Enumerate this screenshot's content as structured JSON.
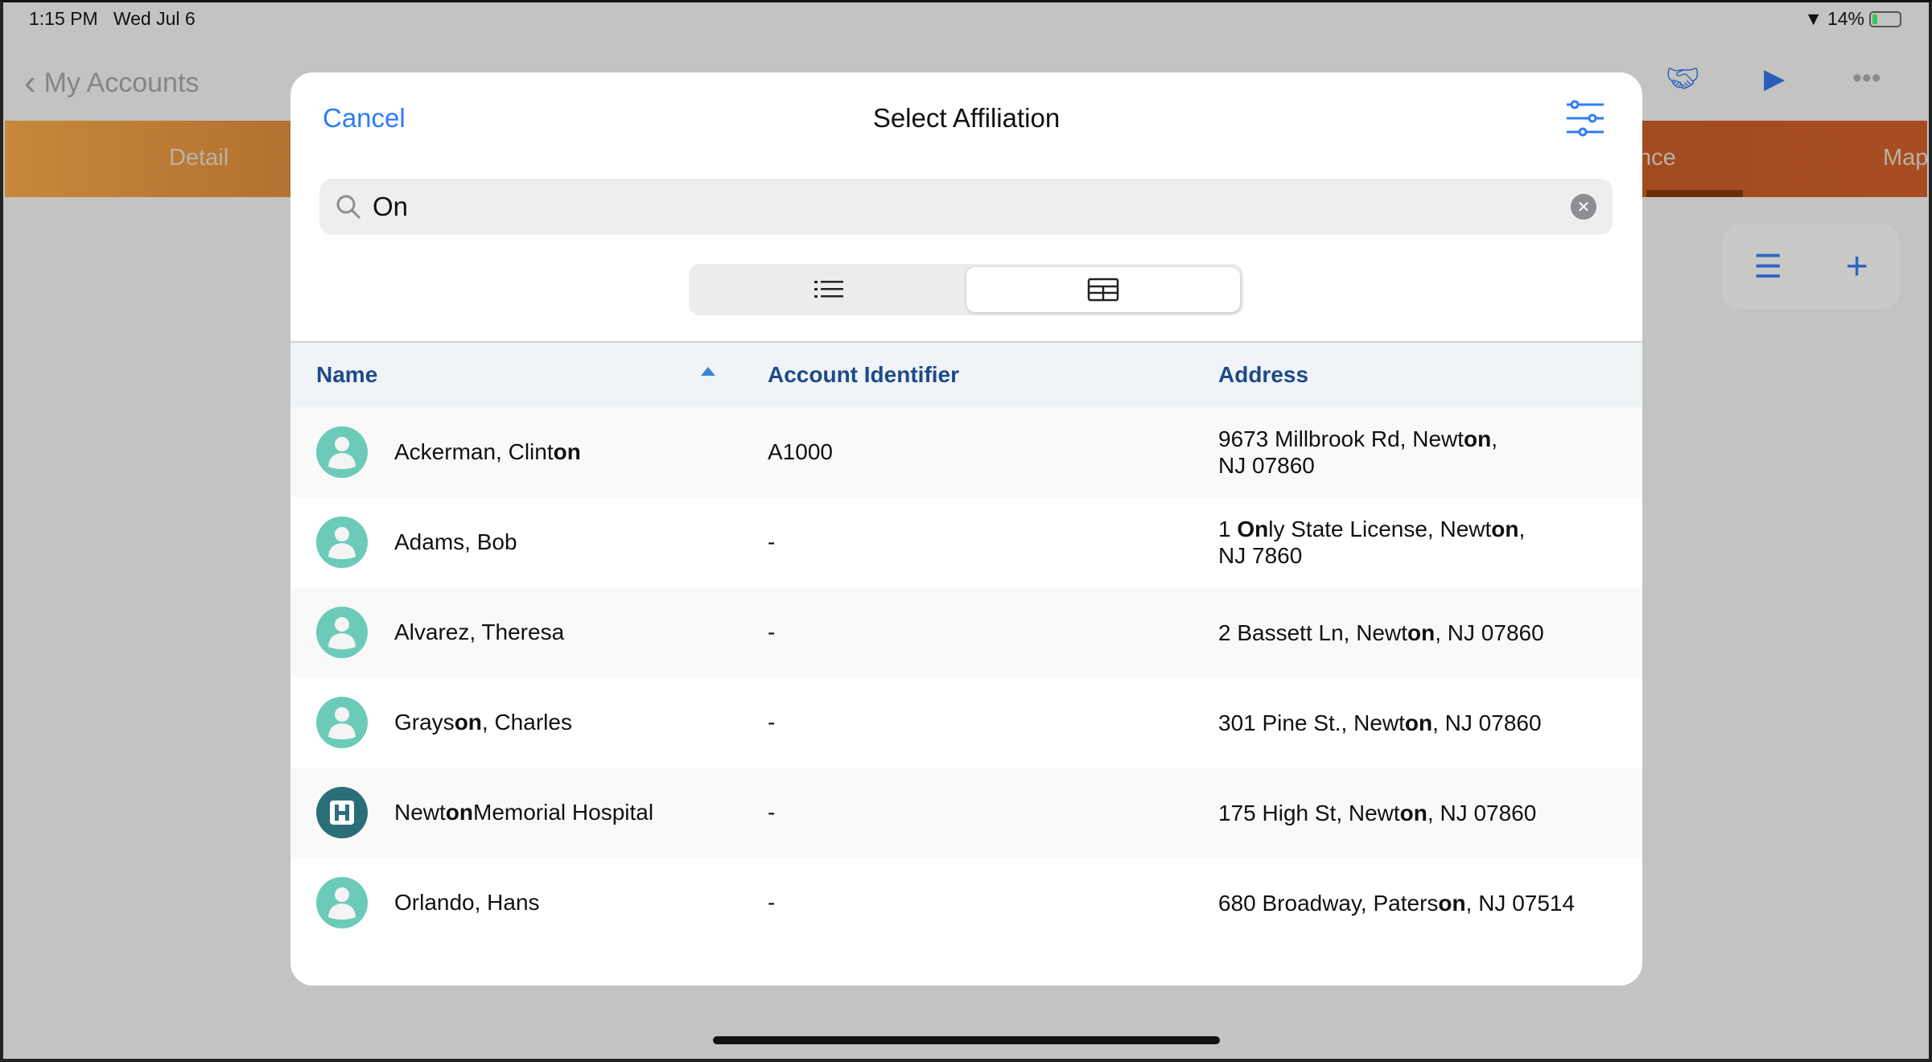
{
  "status": {
    "time": "1:15 PM",
    "date": "Wed Jul 6",
    "battery": "14%",
    "battery_level": 14
  },
  "nav": {
    "back_label": "My Accounts",
    "icons": [
      "handshake-icon",
      "video-icon",
      "ellipsis-icon"
    ]
  },
  "tabs": [
    {
      "label": "Detail"
    },
    {
      "label": "nce"
    },
    {
      "label": "Map"
    }
  ],
  "modal": {
    "cancel": "Cancel",
    "title": "Select Affiliation",
    "filter_icon": "sliders-icon",
    "search": {
      "value": "On",
      "placeholder": ""
    },
    "view_toggle": {
      "options": [
        "list",
        "table"
      ],
      "selected": "table"
    },
    "columns": [
      "Name",
      "Account Identifier",
      "Address"
    ],
    "sort": {
      "column": "Name",
      "direction": "ascending"
    },
    "rows": [
      {
        "type": "person",
        "name": [
          "Ackerman, Clint",
          "on",
          ""
        ],
        "account": "A1000",
        "address": [
          [
            "9673 Millbrook Rd, Newt",
            "on",
            ","
          ],
          [
            "NJ 07860"
          ]
        ]
      },
      {
        "type": "person",
        "name": [
          "Adams, Bob"
        ],
        "account": "-",
        "address": [
          [
            "1 ",
            "On",
            "ly State License, Newt",
            "on",
            ","
          ],
          [
            "NJ 7860"
          ]
        ]
      },
      {
        "type": "person",
        "name": [
          "Alvarez, Theresa"
        ],
        "account": "-",
        "address": [
          [
            "2 Bassett Ln, Newt",
            "on",
            ", NJ 07860"
          ]
        ]
      },
      {
        "type": "person",
        "name": [
          "Grays",
          "on",
          ", Charles"
        ],
        "account": "-",
        "address": [
          [
            "301 Pine St., Newt",
            "on",
            ", NJ 07860"
          ]
        ]
      },
      {
        "type": "hospital",
        "name": [
          "Newt",
          "on",
          " Memorial Hospital"
        ],
        "account": "-",
        "address": [
          [
            "175 High St, Newt",
            "on",
            ", NJ 07860"
          ]
        ]
      },
      {
        "type": "person",
        "name": [
          "Orlando, Hans"
        ],
        "account": "-",
        "address": [
          [
            "680 Broadway, Paters",
            "on",
            ", NJ 07514"
          ]
        ]
      }
    ]
  },
  "colors": {
    "accent": "#2f7cf6",
    "header_text": "#1d4a8a",
    "avatar_person": "#6ccbb8",
    "avatar_hospital": "#2a6f78"
  }
}
